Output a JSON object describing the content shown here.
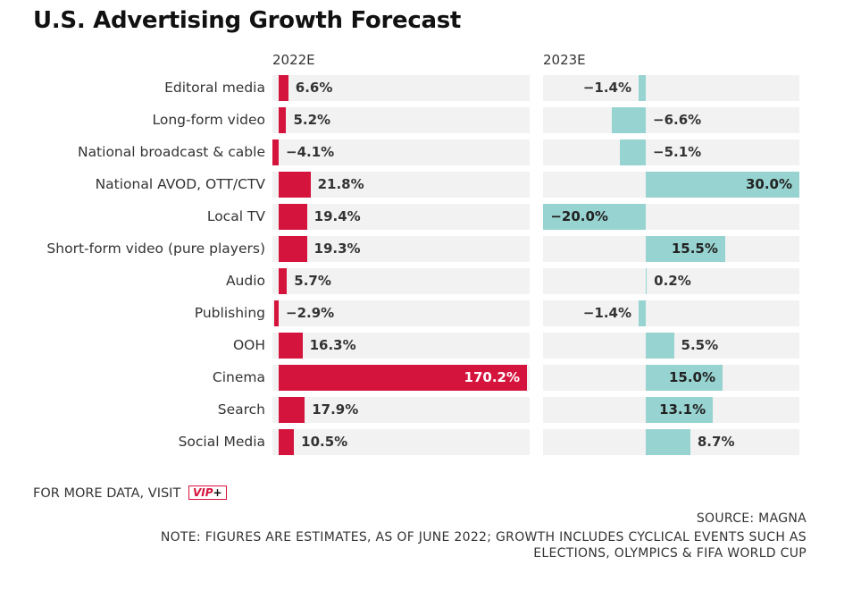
{
  "title": "U.S. Advertising Growth Forecast",
  "colors": {
    "col2022": "#d5143d",
    "col2023": "#97d3d0",
    "panel": "#f2f2f2"
  },
  "chart_data": {
    "type": "bar",
    "categories": [
      "Editoral media",
      "Long-form video",
      "National broadcast & cable",
      "National AVOD, OTT/CTV",
      "Local TV",
      "Short-form video (pure players)",
      "Audio",
      "Publishing",
      "OOH",
      "Cinema",
      "Search",
      "Social Media"
    ],
    "series": [
      {
        "name": "2022E",
        "values": [
          6.6,
          5.2,
          -4.1,
          21.8,
          19.4,
          19.3,
          5.7,
          -2.9,
          16.3,
          170.2,
          17.9,
          10.5
        ],
        "labels": [
          "6.6%",
          "5.2%",
          "−4.1%",
          "21.8%",
          "19.4%",
          "19.3%",
          "5.7%",
          "−2.9%",
          "16.3%",
          "170.2%",
          "17.9%",
          "10.5%"
        ]
      },
      {
        "name": "2023E",
        "values": [
          -1.4,
          -6.6,
          -5.1,
          30.0,
          -20.0,
          15.5,
          0.2,
          -1.4,
          5.5,
          15.0,
          13.1,
          8.7
        ],
        "labels": [
          "−1.4%",
          "−6.6%",
          "−5.1%",
          "30.0%",
          "−20.0%",
          "15.5%",
          "0.2%",
          "−1.4%",
          "5.5%",
          "15.0%",
          "13.1%",
          "8.7%"
        ]
      }
    ],
    "xlim_2022": [
      -4.1,
      170.2
    ],
    "xlim_2023": [
      -20.0,
      30.0
    ]
  },
  "footer": {
    "visit": "FOR MORE DATA, VISIT",
    "vip": "VIP",
    "vip_plus": "+",
    "source": "SOURCE: MAGNA",
    "note_line1": "NOTE: FIGURES ARE ESTIMATES, AS OF JUNE 2022; GROWTH INCLUDES CYCLICAL EVENTS SUCH AS",
    "note_line2": "ELECTIONS, OLYMPICS & FIFA WORLD CUP"
  }
}
